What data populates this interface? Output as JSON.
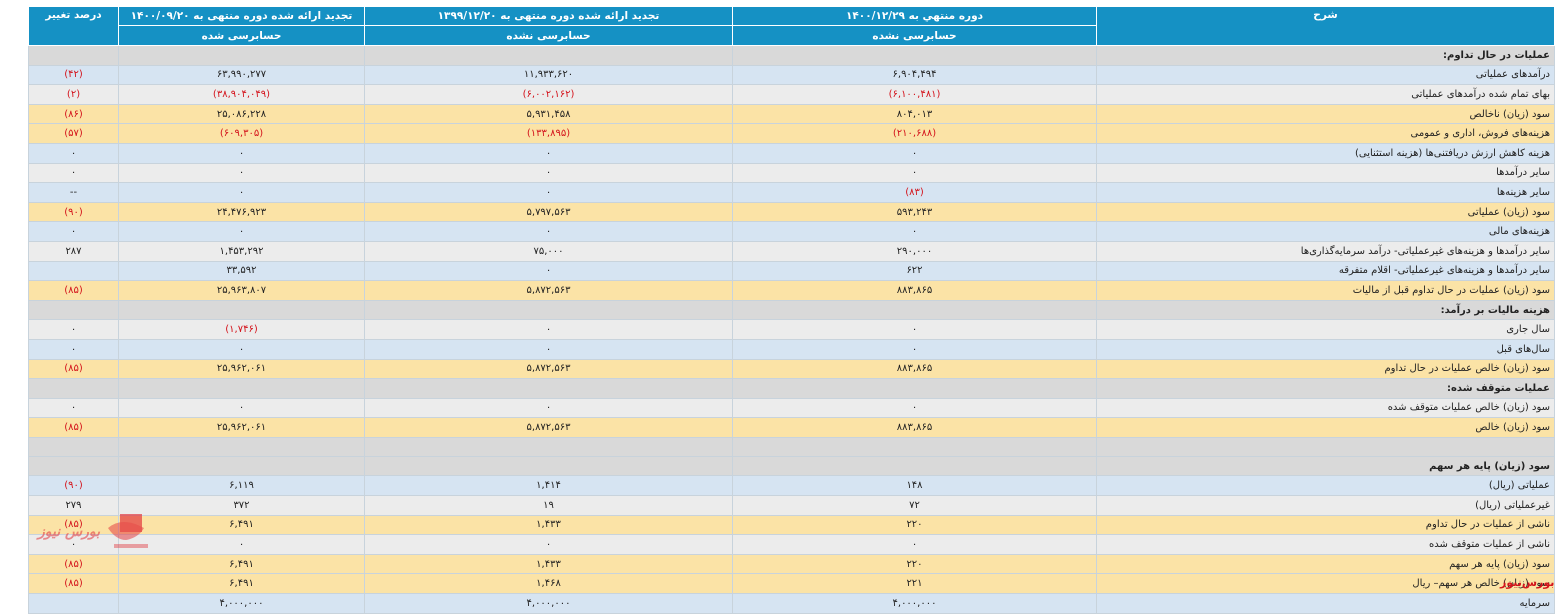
{
  "header": {
    "desc": "شرح",
    "p1": "دوره منتهي به ۱۴۰۰/۱۲/۲۹",
    "p1_sub": "حسابرسی نشده",
    "p2": "تجدید ارائه شده دوره منتهی به ۱۳۹۹/۱۲/۲۰",
    "p2_sub": "حسابرسی نشده",
    "p3": "تجدید ارائه شده دوره منتهی به ۱۴۰۰/۰۹/۲۰",
    "p3_sub": "حسابرسی شده",
    "pct": "درصد تغییر"
  },
  "rows": [
    {
      "desc": "عملیات در حال تداوم:",
      "p1": "",
      "p2": "",
      "p3": "",
      "pct": ""
    },
    {
      "desc": "درآمدهای عملیاتی",
      "p1": "۶,۹۰۴,۴۹۴",
      "p2": "۱۱,۹۳۳,۶۲۰",
      "p3": "۶۳,۹۹۰,۲۷۷",
      "pct": "(۴۲)"
    },
    {
      "desc": "بهای تمام شده درآمدهای عملیاتی",
      "p1": "(۶,۱۰۰,۴۸۱)",
      "p2": "(۶,۰۰۲,۱۶۲)",
      "p3": "(۳۸,۹۰۴,۰۴۹)",
      "pct": "(۲)"
    },
    {
      "desc": "سود (زیان) ناخالص",
      "p1": "۸۰۴,۰۱۳",
      "p2": "۵,۹۳۱,۴۵۸",
      "p3": "۲۵,۰۸۶,۲۲۸",
      "pct": "(۸۶)"
    },
    {
      "desc": "هزینه‌های فروش، اداری و عمومی",
      "p1": "(۲۱۰,۶۸۸)",
      "p2": "(۱۳۳,۸۹۵)",
      "p3": "(۶۰۹,۳۰۵)",
      "pct": "(۵۷)"
    },
    {
      "desc": "هزینه کاهش ارزش دریافتنی‌ها (هزینه استثنایی)",
      "p1": "۰",
      "p2": "۰",
      "p3": "۰",
      "pct": "۰"
    },
    {
      "desc": "سایر درآمدها",
      "p1": "۰",
      "p2": "۰",
      "p3": "۰",
      "pct": "۰"
    },
    {
      "desc": "سایر هزینه‌ها",
      "p1": "(۸۳)",
      "p2": "۰",
      "p3": "۰",
      "pct": "--"
    },
    {
      "desc": "سود (زیان) عملیاتی",
      "p1": "۵۹۳,۲۴۳",
      "p2": "۵,۷۹۷,۵۶۳",
      "p3": "۲۴,۴۷۶,۹۲۳",
      "pct": "(۹۰)"
    },
    {
      "desc": "هزینه‌های مالی",
      "p1": "۰",
      "p2": "۰",
      "p3": "۰",
      "pct": "۰"
    },
    {
      "desc": "سایر درآمدها و هزینه‌های غیرعملیاتی- درآمد سرمایه‌گذاری‌ها",
      "p1": "۲۹۰,۰۰۰",
      "p2": "۷۵,۰۰۰",
      "p3": "۱,۴۵۳,۲۹۲",
      "pct": "۲۸۷"
    },
    {
      "desc": "سایر درآمدها و هزینه‌های غیرعملیاتی- اقلام متفرقه",
      "p1": "۶۲۲",
      "p2": "۰",
      "p3": "۳۳,۵۹۲",
      "pct": ""
    },
    {
      "desc": "سود (زیان) عملیات در حال تداوم قبل از مالیات",
      "p1": "۸۸۳,۸۶۵",
      "p2": "۵,۸۷۲,۵۶۳",
      "p3": "۲۵,۹۶۳,۸۰۷",
      "pct": "(۸۵)"
    },
    {
      "desc": "هزینه مالیات بر درآمد:",
      "p1": "",
      "p2": "",
      "p3": "",
      "pct": ""
    },
    {
      "desc": "سال جاری",
      "p1": "۰",
      "p2": "۰",
      "p3": "(۱,۷۴۶)",
      "pct": "۰"
    },
    {
      "desc": "سال‌های قبل",
      "p1": "۰",
      "p2": "۰",
      "p3": "۰",
      "pct": "۰"
    },
    {
      "desc": "سود (زیان) خالص عملیات در حال تداوم",
      "p1": "۸۸۳,۸۶۵",
      "p2": "۵,۸۷۲,۵۶۳",
      "p3": "۲۵,۹۶۲,۰۶۱",
      "pct": "(۸۵)"
    },
    {
      "desc": "عملیات متوقف شده:",
      "p1": "",
      "p2": "",
      "p3": "",
      "pct": ""
    },
    {
      "desc": "سود (زیان) خالص عملیات متوقف شده",
      "p1": "۰",
      "p2": "۰",
      "p3": "۰",
      "pct": "۰"
    },
    {
      "desc": "سود (زیان) خالص",
      "p1": "۸۸۳,۸۶۵",
      "p2": "۵,۸۷۲,۵۶۳",
      "p3": "۲۵,۹۶۲,۰۶۱",
      "pct": "(۸۵)"
    },
    {
      "desc": "",
      "p1": "",
      "p2": "",
      "p3": "",
      "pct": ""
    },
    {
      "desc": "سود (زیان) پایه هر سهم",
      "p1": "",
      "p2": "",
      "p3": "",
      "pct": ""
    },
    {
      "desc": "عملیاتی (ریال)",
      "p1": "۱۴۸",
      "p2": "۱,۴۱۴",
      "p3": "۶,۱۱۹",
      "pct": "(۹۰)"
    },
    {
      "desc": "غیرعملیاتی (ریال)",
      "p1": "۷۲",
      "p2": "۱۹",
      "p3": "۳۷۲",
      "pct": "۲۷۹"
    },
    {
      "desc": "ناشی از عملیات در حال تداوم",
      "p1": "۲۲۰",
      "p2": "۱,۴۳۳",
      "p3": "۶,۴۹۱",
      "pct": "(۸۵)"
    },
    {
      "desc": "ناشی از عملیات متوقف شده",
      "p1": "۰",
      "p2": "۰",
      "p3": "۰",
      "pct": "۰"
    },
    {
      "desc": "سود (زیان) پایه هر سهم",
      "p1": "۲۲۰",
      "p2": "۱,۴۳۳",
      "p3": "۶,۴۹۱",
      "pct": "(۸۵)"
    },
    {
      "desc": "سود (زیان) خالص هر سهم– ریال",
      "p1": "۲۲۱",
      "p2": "۱,۴۶۸",
      "p3": "۶,۴۹۱",
      "pct": "(۸۵)"
    },
    {
      "desc": "سرمایه",
      "p1": "۴,۰۰۰,۰۰۰",
      "p2": "۴,۰۰۰,۰۰۰",
      "p3": "۴,۰۰۰,۰۰۰",
      "pct": ""
    }
  ],
  "row_styles": [
    "sec",
    "blue",
    "grey",
    "gold",
    "gold",
    "blue",
    "grey",
    "blue",
    "gold",
    "blue",
    "grey",
    "blue",
    "gold",
    "sec",
    "grey",
    "blue",
    "gold",
    "sec",
    "grey",
    "gold",
    "blank",
    "sec",
    "blue",
    "grey",
    "gold",
    "grey",
    "gold",
    "gold",
    "blue"
  ],
  "colors": {
    "header_bg": "#1591c4",
    "negative": "#d4141c",
    "row_blue": "#d6e4f2",
    "row_gold": "#fbe3a6",
    "row_grey": "#ececec",
    "section": "#d9d9d9"
  },
  "watermark": {
    "text": "بورس نیوز",
    "icon": "bourse-news-logo-icon"
  },
  "brand_label": "بورس‌نیوز"
}
